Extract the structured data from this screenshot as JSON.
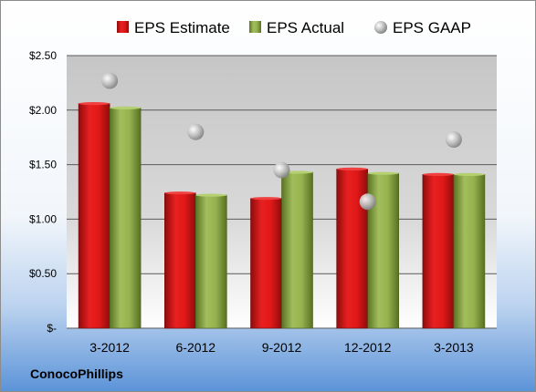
{
  "chart_data": {
    "type": "bar",
    "categories": [
      "3-2012",
      "6-2012",
      "9-2012",
      "12-2012",
      "3-2013"
    ],
    "series": [
      {
        "name": "EPS Estimate",
        "kind": "bar",
        "color": "#cc1a1a",
        "values": [
          2.06,
          1.24,
          1.19,
          1.46,
          1.41
        ]
      },
      {
        "name": "EPS Actual",
        "kind": "bar",
        "color": "#7a9a3a",
        "values": [
          2.02,
          1.22,
          1.43,
          1.42,
          1.41
        ]
      },
      {
        "name": "EPS GAAP",
        "kind": "scatter",
        "color": "#b8b8b8",
        "values": [
          2.27,
          1.8,
          1.45,
          1.16,
          1.73
        ]
      }
    ],
    "yticks": [
      "$-",
      "$0.50",
      "$1.00",
      "$1.50",
      "$2.00",
      "$2.50"
    ],
    "ylim": [
      0,
      2.5
    ],
    "grid": true,
    "legend_position": "top"
  },
  "company": "ConocoPhillips"
}
